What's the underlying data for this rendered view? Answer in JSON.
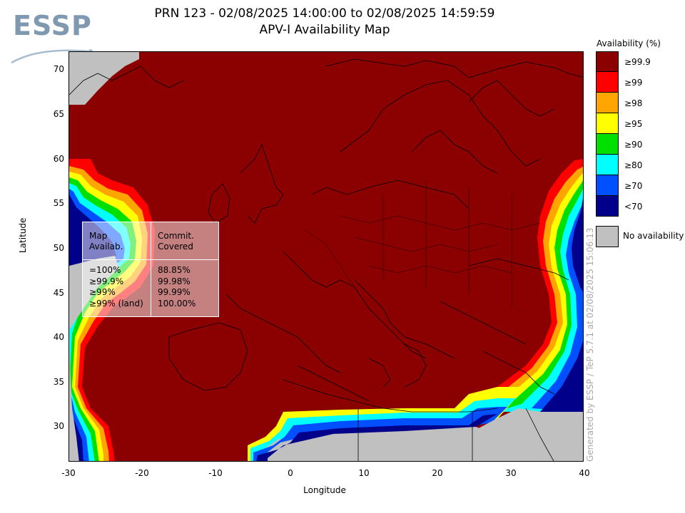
{
  "logo": {
    "text": "ESSP"
  },
  "title": {
    "line1": "PRN 123 - 02/08/2025 14:00:00 to 02/08/2025 14:59:59",
    "line2": "APV-I Availability Map"
  },
  "axes": {
    "xlabel": "Longitude",
    "ylabel": "Latitude",
    "xticks": [
      "-30",
      "-20",
      "-10",
      "0",
      "10",
      "20",
      "30",
      "40"
    ],
    "yticks": [
      "70",
      "65",
      "60",
      "55",
      "50",
      "45",
      "40",
      "35",
      "30"
    ],
    "xlim": [
      -30,
      40
    ],
    "ylim": [
      26,
      72
    ]
  },
  "legend": {
    "title": "Availability (%)",
    "items": [
      {
        "label": "≥99.9",
        "color": "#8b0000"
      },
      {
        "label": "≥99",
        "color": "#ff0000"
      },
      {
        "label": "≥98",
        "color": "#ffa500"
      },
      {
        "label": "≥95",
        "color": "#ffff00"
      },
      {
        "label": "≥90",
        "color": "#00e000"
      },
      {
        "label": "≥80",
        "color": "#00ffff"
      },
      {
        "label": "≥70",
        "color": "#0050ff"
      },
      {
        "label": "<70",
        "color": "#00008b"
      }
    ],
    "no_availability": {
      "label": "No availability",
      "color": "#c0c0c0"
    }
  },
  "stats_table": {
    "header_left": "Map\nAvailab.",
    "header_right": "Commit.\nCovered",
    "rows": [
      {
        "level": "=100%",
        "covered": "88.85%"
      },
      {
        "level": "≥99.9%",
        "covered": "99.98%"
      },
      {
        "level": "≥99%",
        "covered": "99.99%"
      },
      {
        "level": "≥99% (land)",
        "covered": "100.00%"
      }
    ]
  },
  "credit": "Generated by ESSP / TeP 5.7.1 at 02/08/2025 15:06:13"
}
